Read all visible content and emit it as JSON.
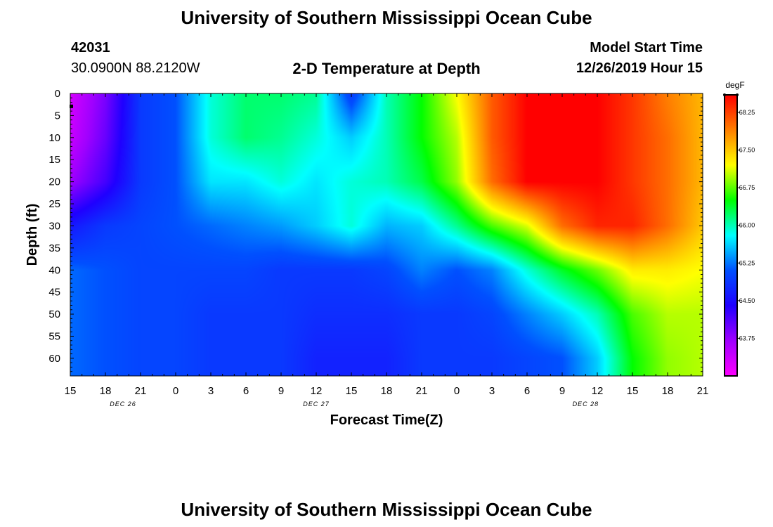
{
  "header": {
    "title": "University of Southern Mississippi Ocean Cube",
    "station_id": "42031",
    "station_location": "30.0900N 88.2120W",
    "chart_title": "2-D Temperature at Depth",
    "model_start_label": "Model Start Time",
    "model_start_value": "12/26/2019 Hour 15"
  },
  "footer": {
    "title": "University of Southern Mississippi Ocean Cube"
  },
  "colors": {
    "colormap": [
      "#ff00ff",
      "#a000ff",
      "#2000ff",
      "#0050ff",
      "#00ffff",
      "#00ff00",
      "#ffff00",
      "#ff8000",
      "#ff0000"
    ]
  },
  "chart_data": {
    "type": "heatmap",
    "title": "2-D Temperature at Depth",
    "xlabel": "Forecast Time(Z)",
    "ylabel": "Depth (ft)",
    "x_ticks": [
      "15",
      "18",
      "21",
      "0",
      "3",
      "6",
      "9",
      "12",
      "15",
      "18",
      "21",
      "0",
      "3",
      "6",
      "9",
      "12",
      "15",
      "18",
      "21"
    ],
    "x_hours": [
      0,
      3,
      6,
      9,
      12,
      15,
      18,
      21,
      24,
      27,
      30,
      33,
      36,
      39,
      42,
      45,
      48,
      51,
      54
    ],
    "date_labels": [
      {
        "text": "DEC 26",
        "hour": 4.5
      },
      {
        "text": "DEC 27",
        "hour": 21
      },
      {
        "text": "DEC 28",
        "hour": 44
      }
    ],
    "y_ticks": [
      0,
      5,
      10,
      15,
      20,
      25,
      30,
      35,
      40,
      45,
      50,
      55,
      60
    ],
    "ylim": [
      0,
      64
    ],
    "xlim": [
      0,
      54
    ],
    "colorbar": {
      "unit": "degF",
      "ticks": [
        68.25,
        67.5,
        66.75,
        66.0,
        65.25,
        64.5,
        63.75
      ],
      "tick_labels": [
        "68.25",
        "67.50",
        "66.75",
        "66.00",
        "65.25",
        "64.50",
        "63.75"
      ],
      "range": [
        63.0,
        68.6
      ]
    },
    "grid_hours": [
      0,
      3,
      6,
      9,
      12,
      15,
      18,
      21,
      24,
      27,
      30,
      33,
      36,
      39,
      42,
      45,
      48,
      51,
      54
    ],
    "grid_depths": [
      0,
      10,
      20,
      30,
      40,
      50,
      60,
      64
    ],
    "grid_values": [
      [
        63.3,
        63.9,
        64.9,
        65.1,
        65.9,
        66.2,
        66.2,
        66.1,
        64.9,
        66.0,
        66.5,
        67.2,
        68.1,
        68.6,
        68.6,
        68.6,
        68.3,
        67.9,
        67.6
      ],
      [
        63.4,
        64.0,
        64.9,
        65.1,
        65.9,
        66.2,
        66.1,
        65.9,
        65.6,
        66.0,
        66.5,
        67.0,
        68.1,
        68.6,
        68.6,
        68.6,
        68.3,
        68.0,
        67.6
      ],
      [
        63.7,
        64.2,
        64.9,
        65.1,
        65.7,
        65.7,
        65.9,
        65.7,
        65.9,
        66.0,
        66.3,
        66.9,
        68.0,
        68.6,
        68.6,
        68.6,
        68.3,
        68.0,
        67.6
      ],
      [
        64.6,
        64.9,
        65.0,
        65.1,
        65.2,
        65.3,
        65.4,
        65.6,
        65.9,
        65.5,
        65.6,
        66.1,
        66.7,
        67.1,
        68.0,
        68.4,
        68.4,
        68.0,
        67.5
      ],
      [
        65.2,
        65.1,
        65.0,
        65.0,
        65.0,
        65.0,
        64.9,
        64.9,
        64.9,
        65.0,
        65.3,
        65.1,
        65.3,
        65.9,
        66.4,
        66.8,
        67.3,
        67.3,
        67.2
      ],
      [
        65.2,
        65.1,
        65.0,
        65.0,
        64.9,
        64.9,
        64.9,
        64.8,
        64.8,
        64.8,
        64.9,
        64.9,
        65.0,
        65.3,
        65.6,
        66.0,
        66.7,
        67.0,
        67.0
      ],
      [
        65.2,
        65.1,
        65.0,
        65.0,
        64.9,
        64.9,
        64.9,
        64.7,
        64.7,
        64.7,
        64.9,
        64.9,
        64.9,
        65.0,
        65.1,
        65.6,
        66.5,
        66.9,
        67.0
      ],
      [
        65.2,
        65.1,
        65.0,
        65.0,
        64.9,
        64.9,
        64.9,
        64.7,
        64.7,
        64.7,
        64.9,
        64.9,
        64.9,
        65.0,
        65.1,
        65.6,
        66.5,
        66.9,
        67.0
      ]
    ]
  }
}
